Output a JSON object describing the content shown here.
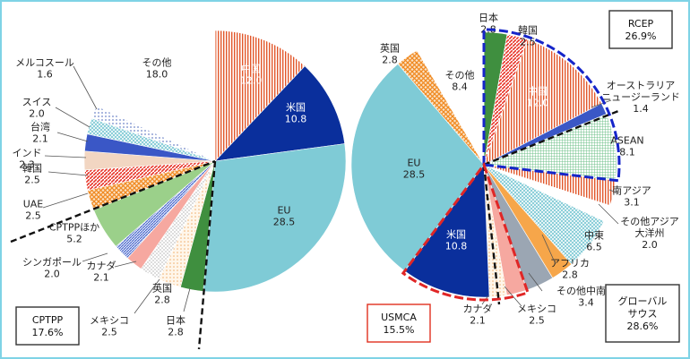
{
  "chart_data": [
    {
      "type": "pie",
      "group_label": "CPTPP",
      "group_share": "17.6%",
      "slices": [
        {
          "label": "中国",
          "value": 12.0
        },
        {
          "label": "米国",
          "value": 10.8
        },
        {
          "label": "EU",
          "value": 28.5
        },
        {
          "label": "日本",
          "value": 2.8
        },
        {
          "label": "英国",
          "value": 2.8
        },
        {
          "label": "メキシコ",
          "value": 2.5
        },
        {
          "label": "カナダ",
          "value": 2.1
        },
        {
          "label": "シンガポール",
          "value": 2.0
        },
        {
          "label": "CPTPPほか",
          "value": 5.2
        },
        {
          "label": "UAE",
          "value": 2.5
        },
        {
          "label": "韓国",
          "value": 2.5
        },
        {
          "label": "インド",
          "value": 2.3
        },
        {
          "label": "台湾",
          "value": 2.1
        },
        {
          "label": "スイス",
          "value": 2.0
        },
        {
          "label": "メルコスール",
          "value": 1.6
        },
        {
          "label": "その他",
          "value": 18.0
        }
      ]
    },
    {
      "type": "pie",
      "groups": [
        {
          "label": "RCEP",
          "share": "26.9%"
        },
        {
          "label": "USMCA",
          "share": "15.5%"
        },
        {
          "label": "グローバル\nサウス",
          "share": "28.6%"
        }
      ],
      "slices": [
        {
          "label": "日本",
          "value": 2.8
        },
        {
          "label": "韓国",
          "value": 2.5
        },
        {
          "label": "中国",
          "value": 12.0
        },
        {
          "label": "オーストラリア\nニュージーランド",
          "value": 1.4
        },
        {
          "label": "ASEAN",
          "value": 8.1
        },
        {
          "label": "南アジア",
          "value": 3.1
        },
        {
          "label": "その他アジア\n大洋州",
          "value": 2.0
        },
        {
          "label": "中東",
          "value": 6.5
        },
        {
          "label": "アフリカ",
          "value": 2.8
        },
        {
          "label": "その他中南米",
          "value": 3.4
        },
        {
          "label": "メキシコ",
          "value": 2.5
        },
        {
          "label": "カナダ",
          "value": 2.1
        },
        {
          "label": "米国",
          "value": 10.8
        },
        {
          "label": "EU",
          "value": 28.5
        },
        {
          "label": "英国",
          "value": 2.8
        },
        {
          "label": "その他",
          "value": 8.4
        }
      ]
    }
  ]
}
